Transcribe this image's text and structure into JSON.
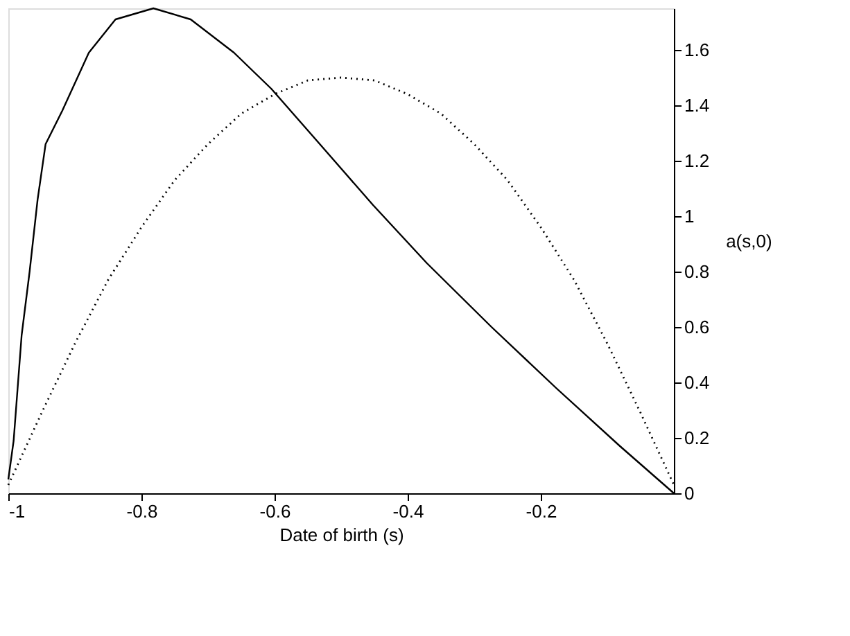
{
  "chart_data": {
    "type": "line",
    "xlabel": "Date of birth (s)",
    "ylabel": "a(s,0)",
    "xlim": [
      -1,
      0
    ],
    "xticks": [
      -1,
      -0.8,
      -0.6,
      -0.4,
      -0.2
    ],
    "ylim": [
      0,
      1.75
    ],
    "yticks": [
      0,
      0.2,
      0.4,
      0.6,
      0.8,
      1,
      1.2,
      1.4,
      1.6
    ],
    "grid": false,
    "marker": "none",
    "series": [
      {
        "color": "#000000",
        "line_style": "solid",
        "x": [
          -1,
          -0.992,
          -0.98,
          -0.968,
          -0.956,
          -0.944,
          -0.919,
          -0.879,
          -0.839,
          -0.782,
          -0.726,
          -0.661,
          -0.605,
          -0.532,
          -0.452,
          -0.371,
          -0.274,
          -0.177,
          -0.081,
          0
        ],
        "values": [
          0.05,
          0.19,
          0.57,
          0.8,
          1.06,
          1.26,
          1.38,
          1.59,
          1.71,
          1.75,
          1.71,
          1.59,
          1.46,
          1.26,
          1.04,
          0.83,
          0.6,
          0.38,
          0.17,
          0
        ]
      },
      {
        "color": "#000000",
        "line_style": "dotted",
        "x": [
          -1,
          -0.95,
          -0.9,
          -0.85,
          -0.8,
          -0.75,
          -0.7,
          -0.65,
          -0.6,
          -0.55,
          -0.5,
          -0.45,
          -0.4,
          -0.35,
          -0.3,
          -0.25,
          -0.2,
          -0.15,
          -0.1,
          -0.05,
          0
        ],
        "values": [
          0.03,
          0.29,
          0.54,
          0.77,
          0.96,
          1.13,
          1.26,
          1.37,
          1.44,
          1.49,
          1.5,
          1.49,
          1.44,
          1.37,
          1.26,
          1.13,
          0.96,
          0.77,
          0.54,
          0.29,
          0.03
        ]
      }
    ]
  }
}
